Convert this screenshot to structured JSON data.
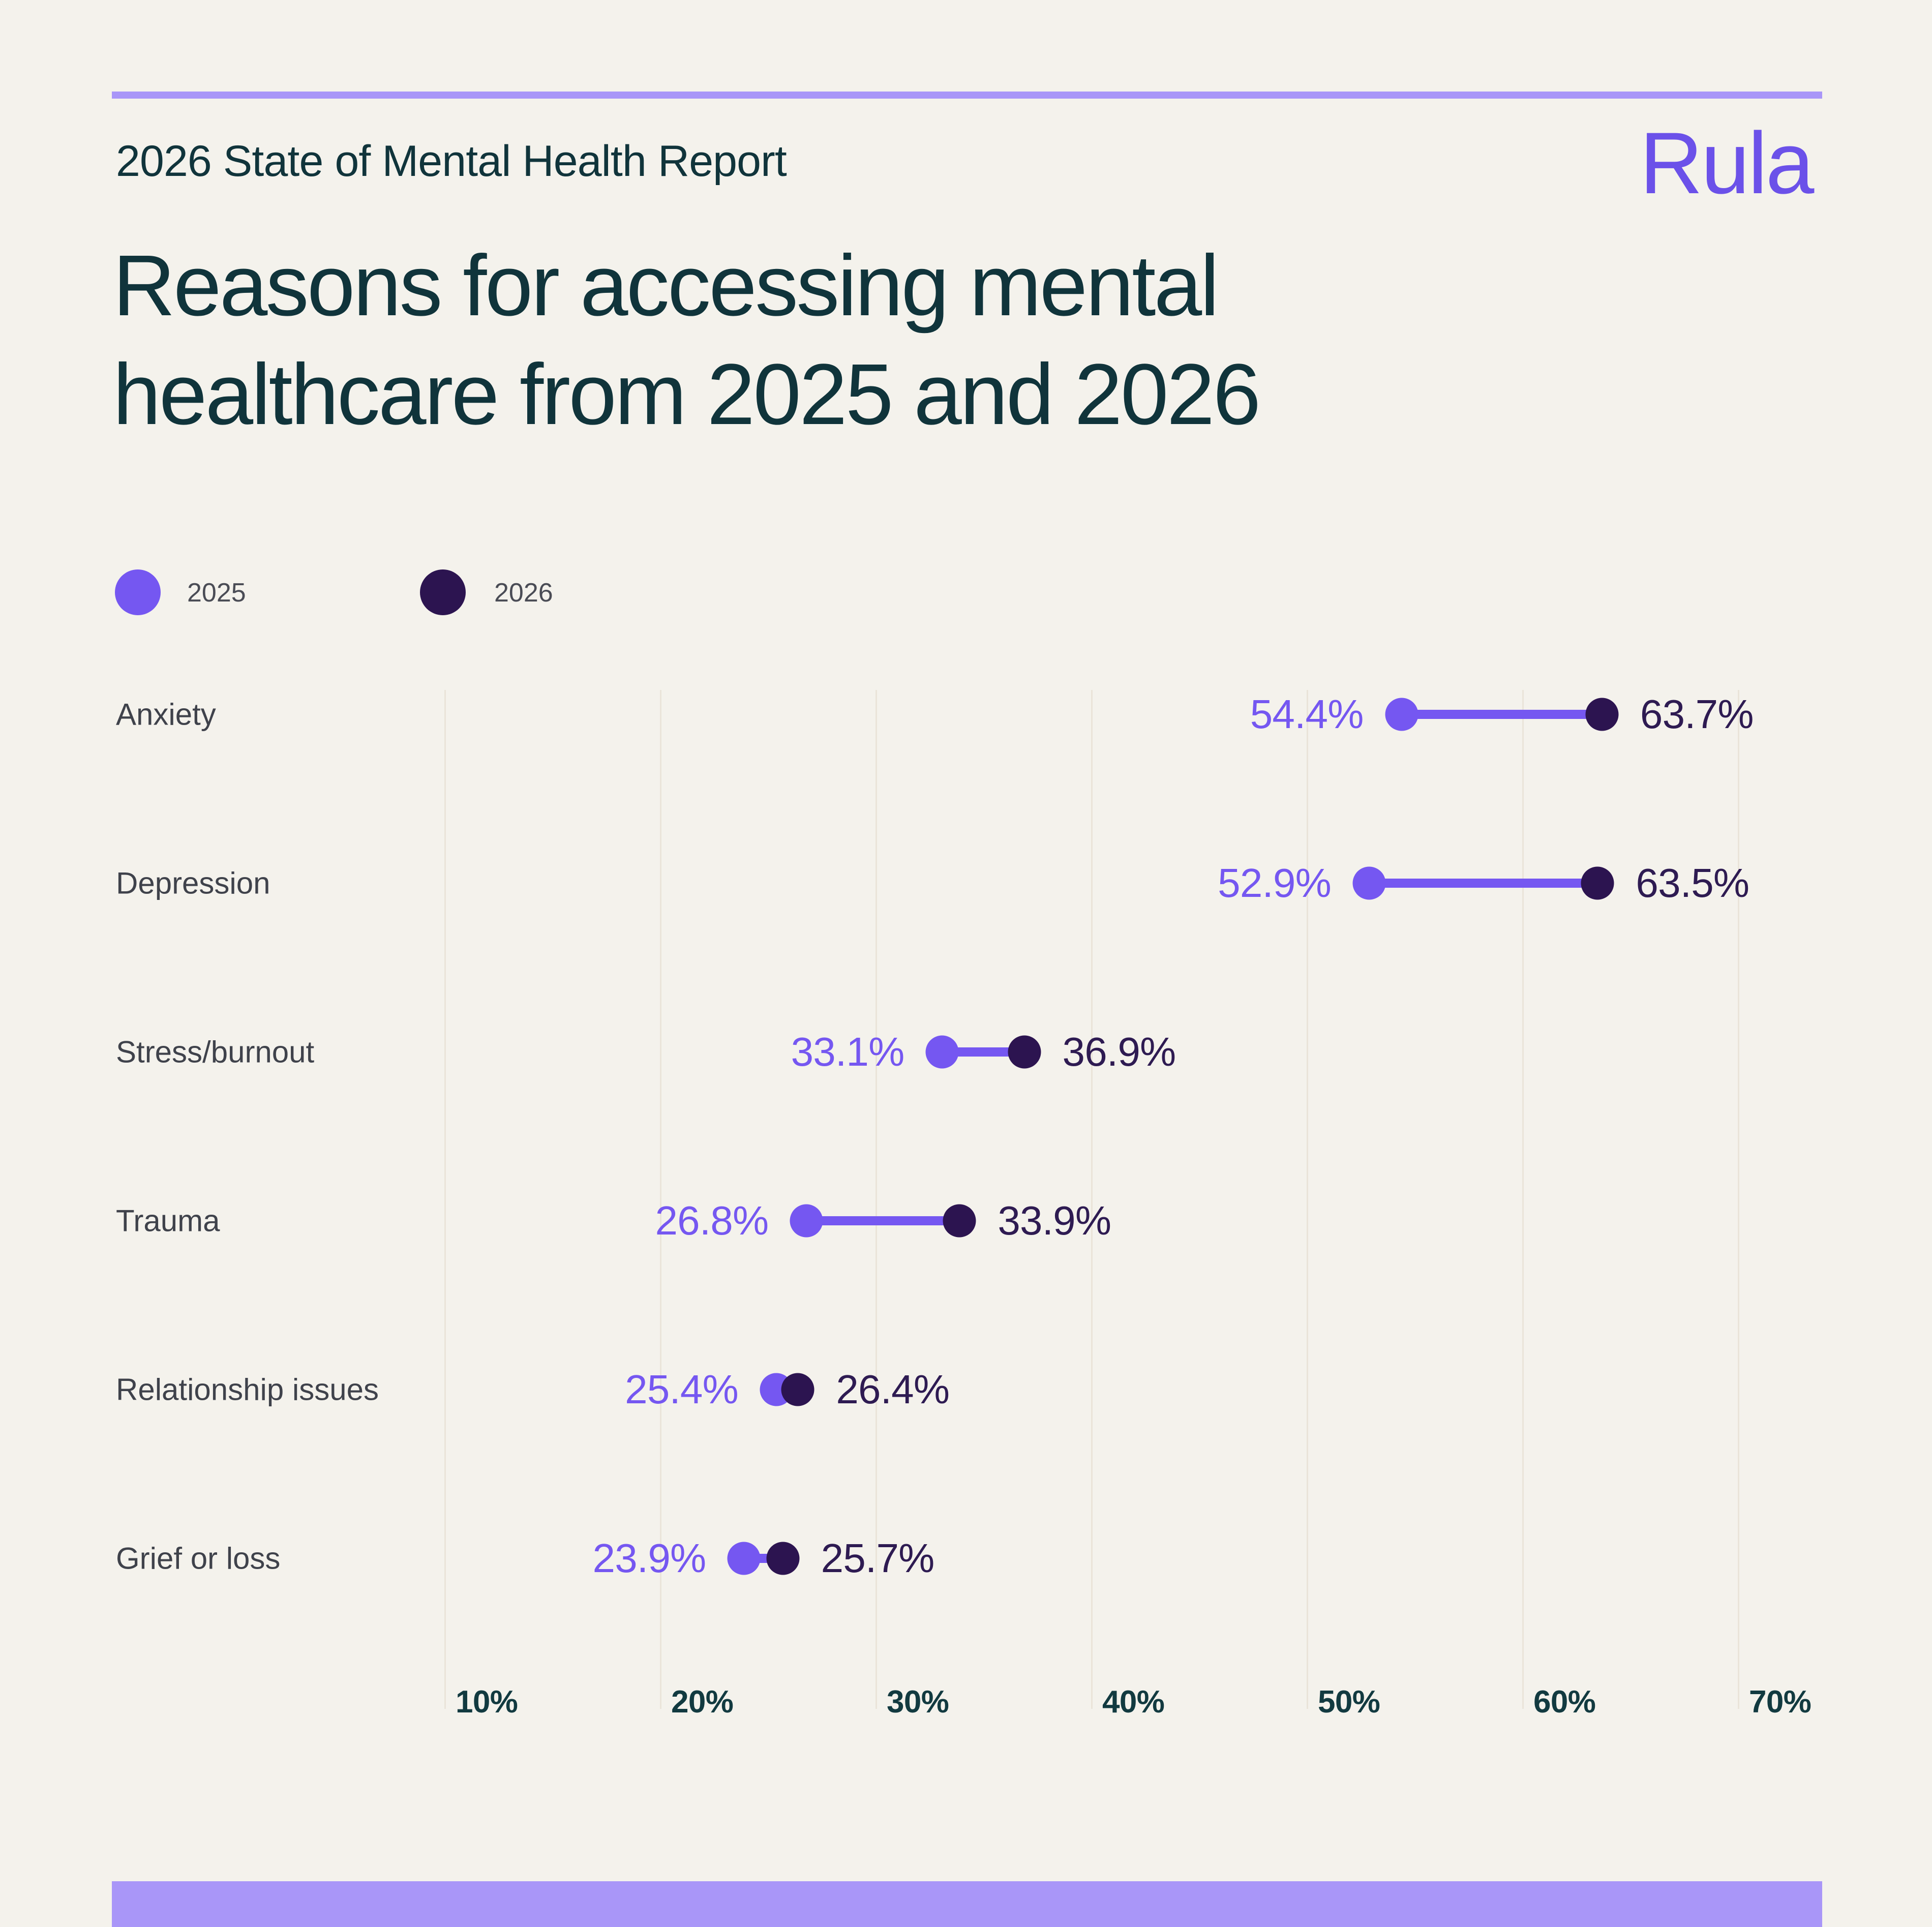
{
  "header": {
    "report_label": "2026 State of Mental Health Report",
    "brand": "Rula",
    "title_line1": "Reasons for accessing mental",
    "title_line2": "healthcare from 2025 and 2026"
  },
  "legend": {
    "items": [
      {
        "label": "2025"
      },
      {
        "label": "2026"
      }
    ]
  },
  "chart_data": {
    "type": "dumbbell",
    "orientation": "horizontal",
    "title": "Reasons for accessing mental healthcare from 2025 and 2026",
    "categories": [
      "Anxiety",
      "Depression",
      "Stress/burnout",
      "Trauma",
      "Relationship issues",
      "Grief or loss"
    ],
    "series": [
      {
        "name": "2025",
        "color": "#7557F1",
        "values": [
          54.4,
          52.9,
          33.1,
          26.8,
          25.4,
          23.9
        ]
      },
      {
        "name": "2026",
        "color": "#2C1450",
        "values": [
          63.7,
          63.5,
          36.9,
          33.9,
          26.4,
          25.7
        ]
      }
    ],
    "value_suffix": "%",
    "x_ticks": [
      10,
      20,
      30,
      40,
      50,
      60,
      70
    ],
    "tick_suffix": "%",
    "xlim": [
      10,
      70
    ],
    "grid": true,
    "legend_position": "top-left"
  },
  "colors": {
    "background": "#F4F2EC",
    "accent_bar": "#A996F8",
    "brand": "#6B51E9",
    "heading": "#10343B",
    "category_label": "#3F424B",
    "legend_label": "#4A4C55",
    "gridline": "#EAE4D9",
    "series_2025": "#7557F1",
    "series_2026": "#2C1450",
    "value_2026_text": "#2E1B52"
  }
}
